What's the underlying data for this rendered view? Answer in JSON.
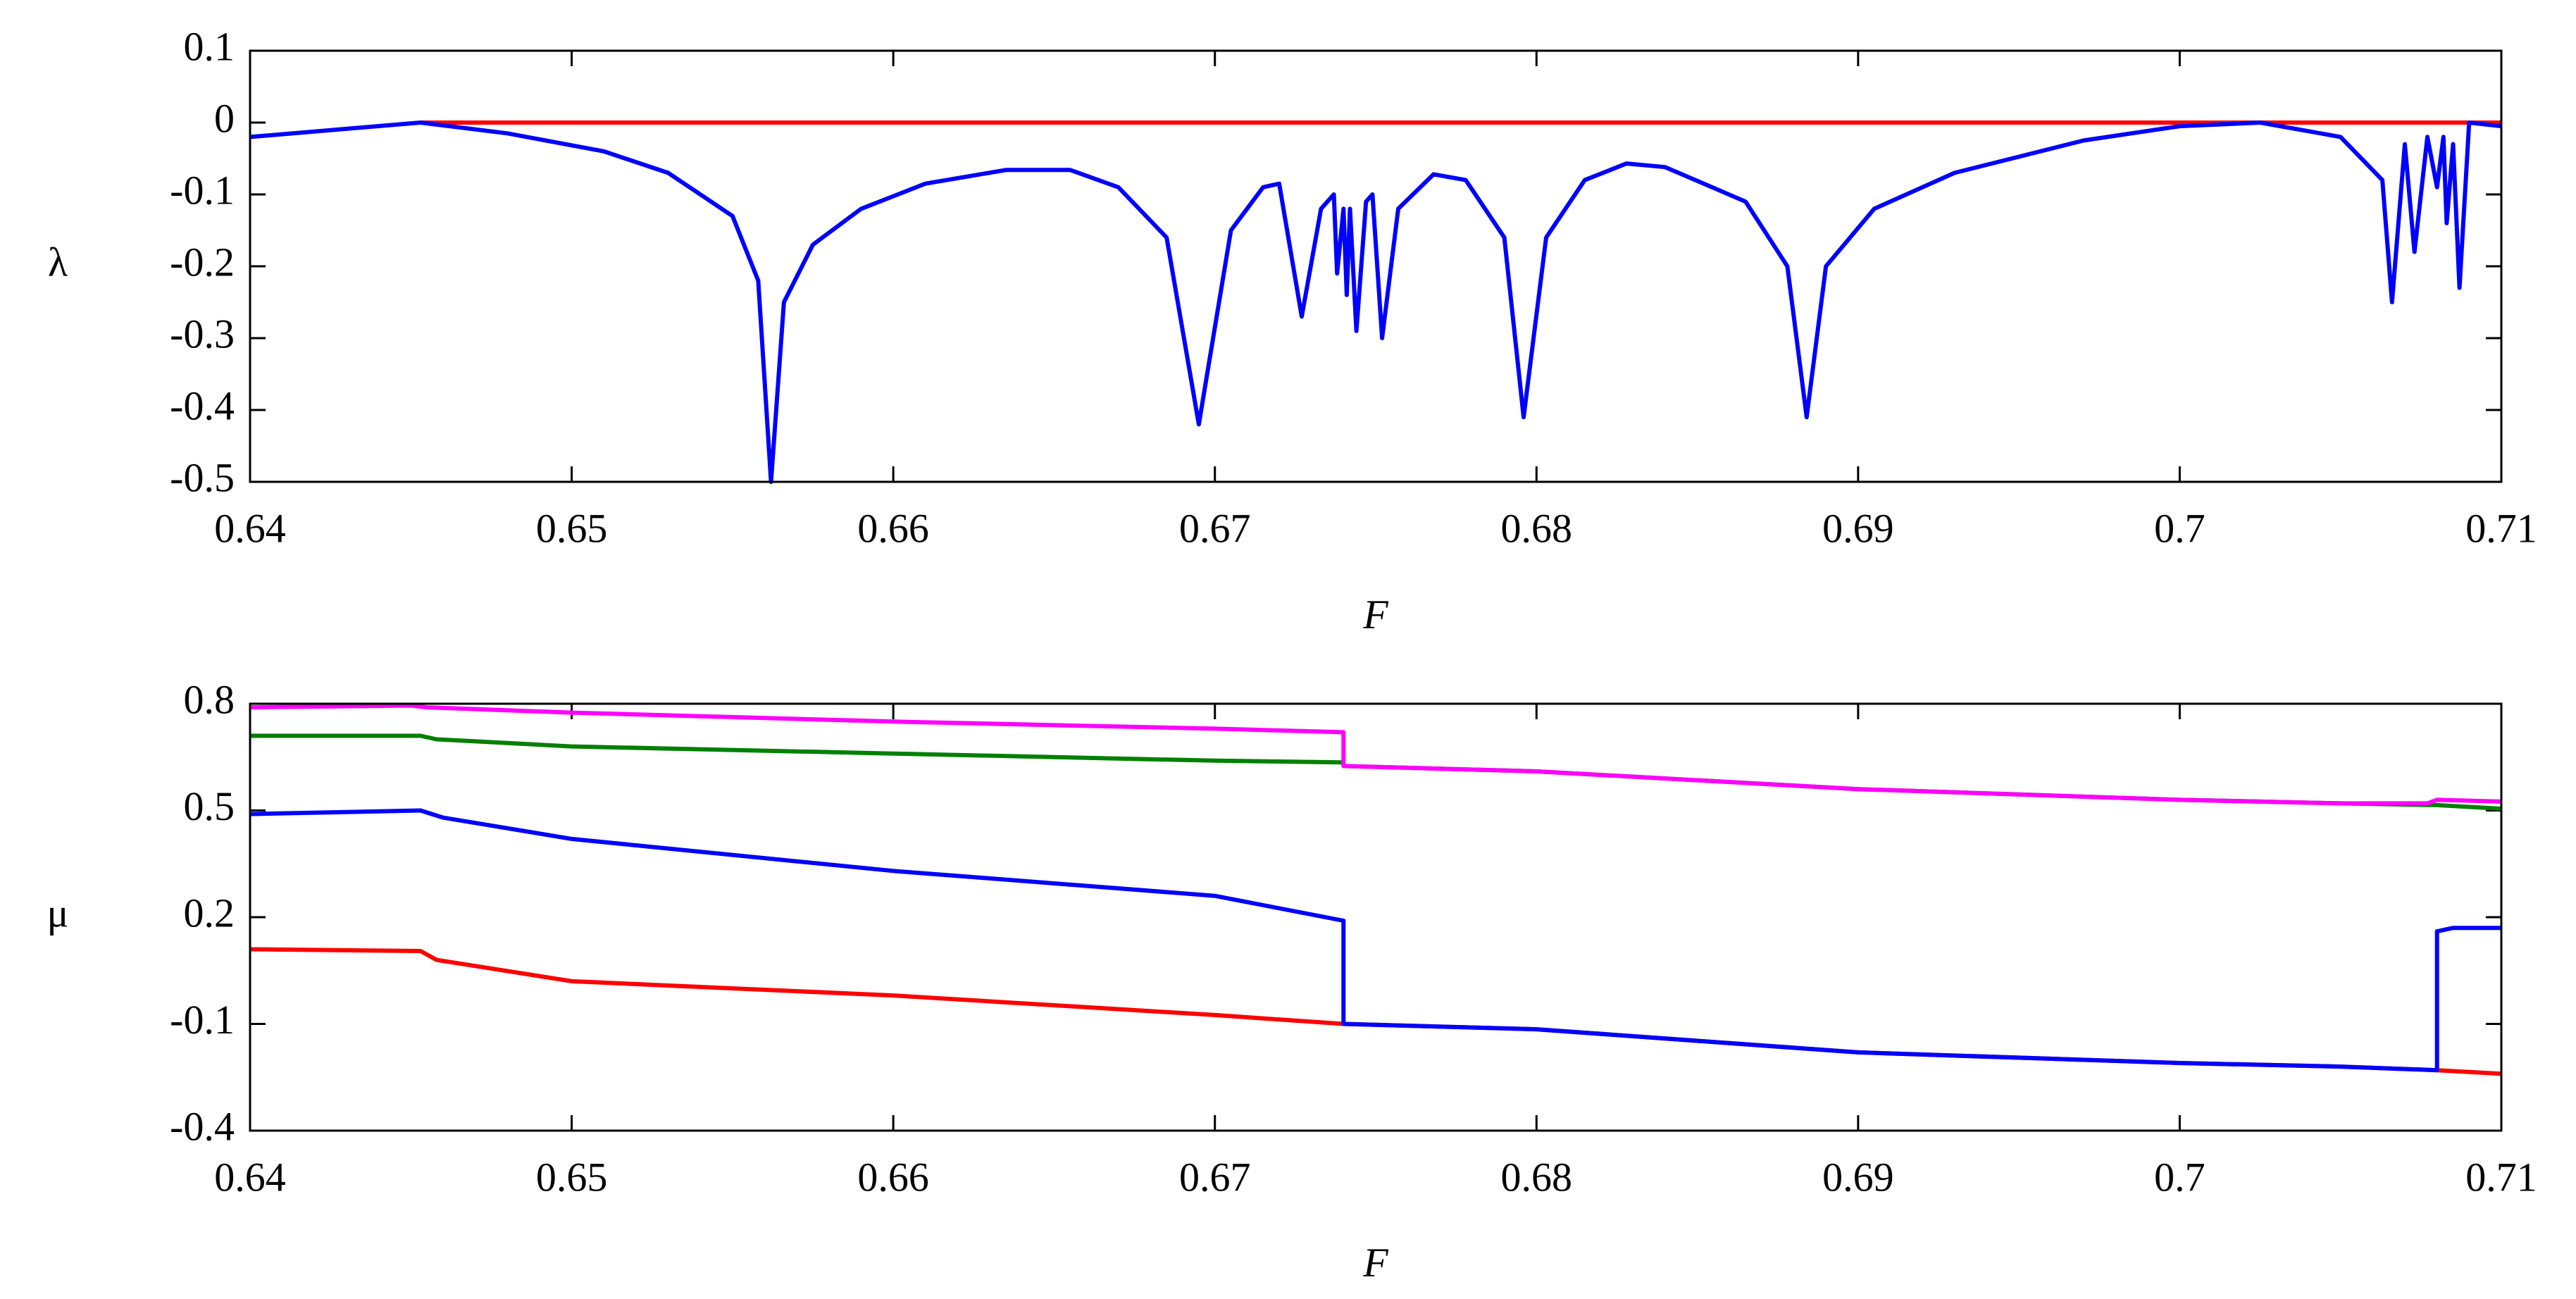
{
  "chart_data": [
    {
      "type": "line",
      "x_label": "F",
      "y_label": "λ",
      "xlim": [
        0.64,
        0.71
      ],
      "xticks": [
        0.64,
        0.65,
        0.66,
        0.67,
        0.68,
        0.69,
        0.7,
        0.71
      ],
      "ylim": [
        -0.5,
        0.1
      ],
      "yticks": [
        -0.5,
        -0.4,
        -0.3,
        -0.2,
        -0.1,
        0,
        0.1
      ],
      "series": [
        {
          "color": "#ff0000",
          "x": [
            0.6453,
            0.71
          ],
          "values": [
            0,
            0
          ]
        },
        {
          "color": "#0000ff",
          "x": [
            0.64,
            0.6453,
            0.648,
            0.651,
            0.653,
            0.655,
            0.6558,
            0.6562,
            0.6566,
            0.6575,
            0.659,
            0.661,
            0.6635,
            0.6655,
            0.667,
            0.6685,
            0.6695,
            0.6705,
            0.6715,
            0.672,
            0.6727,
            0.6733,
            0.6737,
            0.6738,
            0.674,
            0.6741,
            0.6742,
            0.6744,
            0.6747,
            0.6749,
            0.6752,
            0.6757,
            0.6768,
            0.6778,
            0.679,
            0.6796,
            0.6803,
            0.6815,
            0.6828,
            0.684,
            0.6865,
            0.6878,
            0.6884,
            0.689,
            0.6905,
            0.693,
            0.697,
            0.7,
            0.7025,
            0.705,
            0.7063,
            0.7066,
            0.707,
            0.7073,
            0.7077,
            0.708,
            0.7082,
            0.7083,
            0.7085,
            0.7087,
            0.709,
            0.71
          ],
          "values": [
            -0.02,
            0,
            -0.015,
            -0.04,
            -0.07,
            -0.13,
            -0.22,
            -0.5,
            -0.25,
            -0.17,
            -0.12,
            -0.085,
            -0.066,
            -0.066,
            -0.09,
            -0.16,
            -0.42,
            -0.15,
            -0.09,
            -0.085,
            -0.27,
            -0.12,
            -0.1,
            -0.21,
            -0.12,
            -0.24,
            -0.12,
            -0.29,
            -0.11,
            -0.1,
            -0.3,
            -0.12,
            -0.072,
            -0.08,
            -0.16,
            -0.41,
            -0.16,
            -0.08,
            -0.057,
            -0.062,
            -0.11,
            -0.2,
            -0.41,
            -0.2,
            -0.12,
            -0.07,
            -0.025,
            -0.005,
            0,
            -0.02,
            -0.08,
            -0.25,
            -0.03,
            -0.18,
            -0.02,
            -0.09,
            -0.02,
            -0.14,
            -0.03,
            -0.23,
            0,
            -0.005
          ]
        }
      ]
    },
    {
      "type": "line",
      "x_label": "F",
      "y_label": "μ",
      "xlim": [
        0.64,
        0.71
      ],
      "xticks": [
        0.64,
        0.65,
        0.66,
        0.67,
        0.68,
        0.69,
        0.7,
        0.71
      ],
      "ylim": [
        -0.4,
        0.8
      ],
      "yticks": [
        -0.4,
        -0.1,
        0.2,
        0.5,
        0.8
      ],
      "series": [
        {
          "color": "#ff0000",
          "x": [
            0.64,
            0.6453,
            0.6458,
            0.65,
            0.66,
            0.67,
            0.674,
            0.68,
            0.69,
            0.7,
            0.705,
            0.708,
            0.71
          ],
          "values": [
            0.11,
            0.105,
            0.08,
            0.02,
            -0.02,
            -0.075,
            -0.1,
            -0.115,
            -0.18,
            -0.21,
            -0.22,
            -0.23,
            -0.24
          ]
        },
        {
          "color": "#008000",
          "x": [
            0.64,
            0.6453,
            0.6458,
            0.65,
            0.66,
            0.67,
            0.674,
            0.674,
            0.68,
            0.69,
            0.7,
            0.705,
            0.708,
            0.71
          ],
          "values": [
            0.71,
            0.71,
            0.7,
            0.68,
            0.66,
            0.64,
            0.635,
            0.625,
            0.61,
            0.56,
            0.53,
            0.52,
            0.515,
            0.505
          ]
        },
        {
          "color": "#ff00ff",
          "x": [
            0.64,
            0.645,
            0.6455,
            0.65,
            0.66,
            0.67,
            0.674,
            0.674,
            0.68,
            0.69,
            0.7,
            0.705,
            0.7077,
            0.708,
            0.71
          ],
          "values": [
            0.79,
            0.795,
            0.79,
            0.775,
            0.75,
            0.73,
            0.72,
            0.625,
            0.61,
            0.56,
            0.53,
            0.52,
            0.52,
            0.53,
            0.525
          ]
        },
        {
          "color": "#0000ff",
          "x": [
            0.64,
            0.6453,
            0.646,
            0.65,
            0.66,
            0.67,
            0.674,
            0.674,
            0.68,
            0.69,
            0.7,
            0.705,
            0.708,
            0.708,
            0.7085,
            0.71
          ],
          "values": [
            0.49,
            0.5,
            0.48,
            0.42,
            0.33,
            0.26,
            0.19,
            -0.1,
            -0.115,
            -0.18,
            -0.21,
            -0.22,
            -0.23,
            0.16,
            0.17,
            0.17
          ]
        }
      ]
    }
  ]
}
